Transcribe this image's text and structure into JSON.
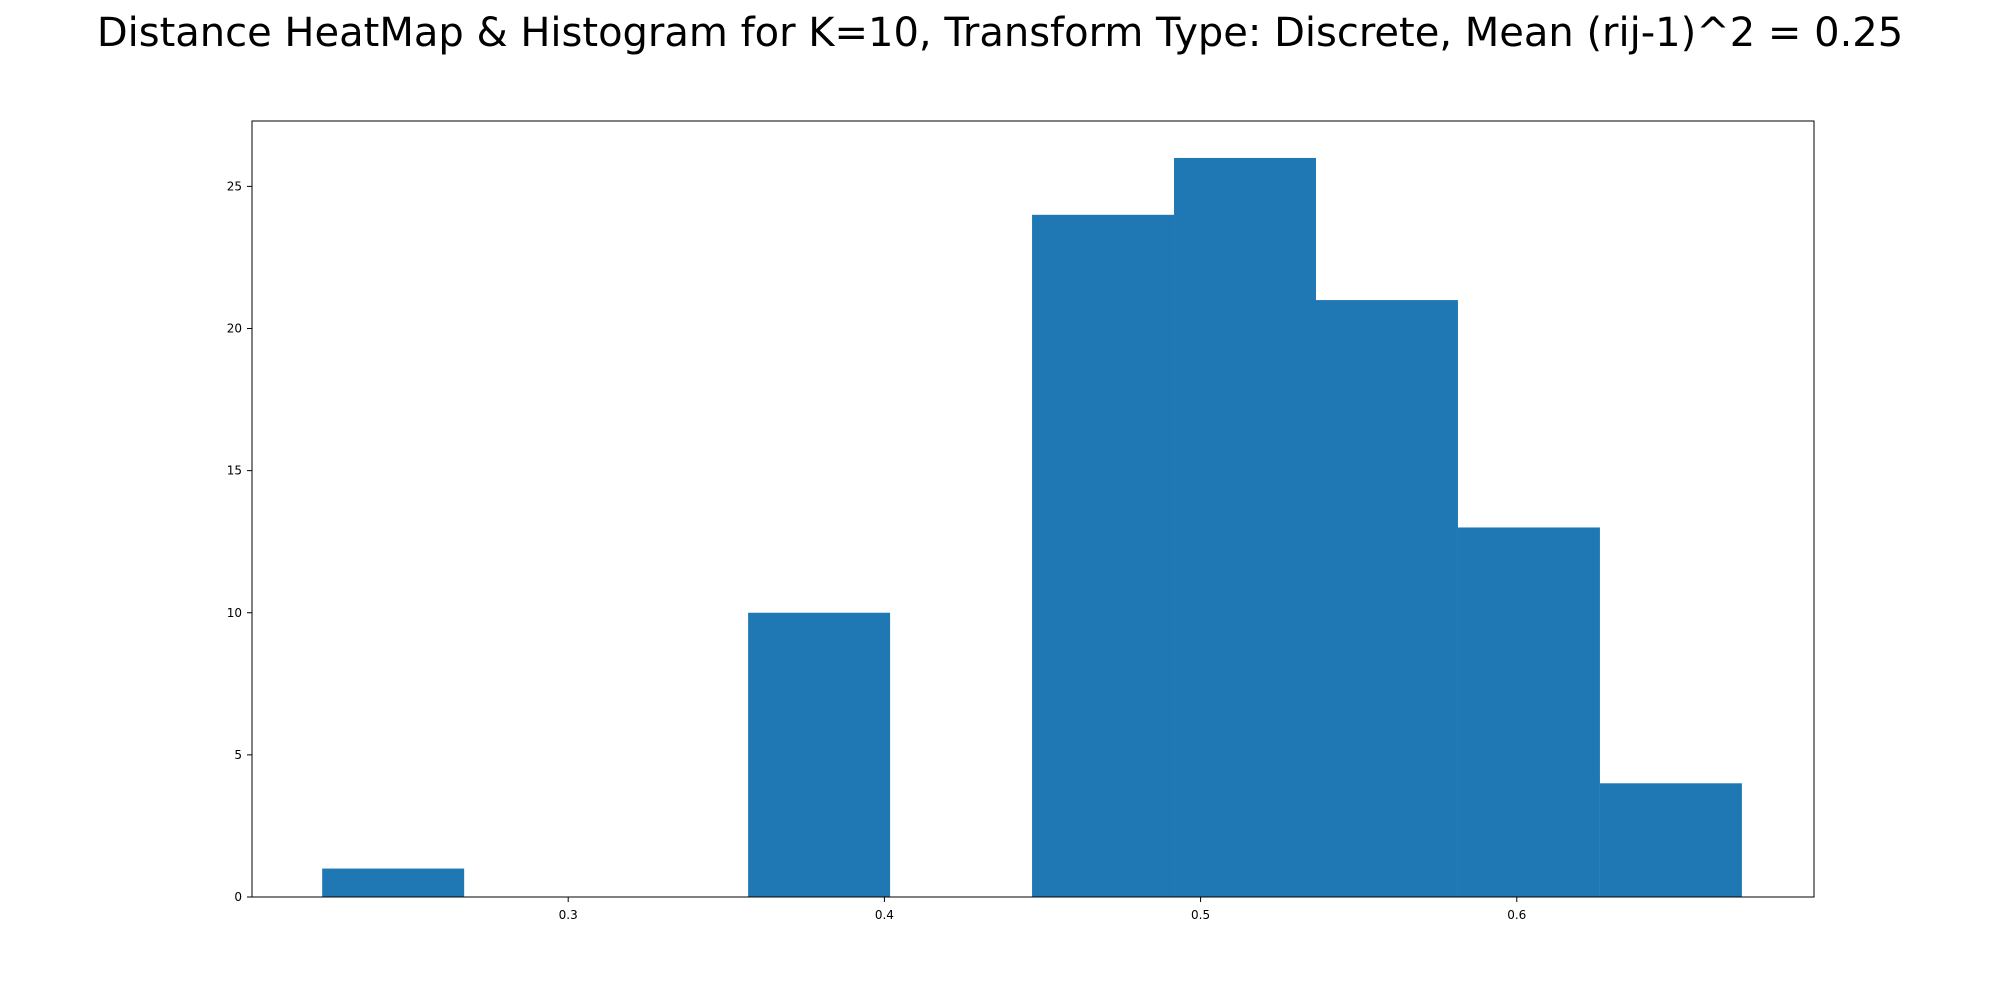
{
  "chart_data": {
    "type": "bar",
    "title": "Distance HeatMap & Histogram for K=10, Transform Type: Discrete, Mean (rij-1)^2 = 0.25",
    "xlabel": "",
    "ylabel": "",
    "xlim": [
      0.2,
      0.694
    ],
    "ylim": [
      0,
      27.3
    ],
    "x_ticks": [
      0.3,
      0.4,
      0.5,
      0.6
    ],
    "x_tick_labels": [
      "0.3",
      "0.4",
      "0.5",
      "0.6"
    ],
    "y_ticks": [
      0,
      5,
      10,
      15,
      20,
      25
    ],
    "y_tick_labels": [
      "0",
      "5",
      "10",
      "15",
      "20",
      "25"
    ],
    "bin_edges": [
      0.2222,
      0.2671,
      0.312,
      0.3569,
      0.4018,
      0.4467,
      0.4916,
      0.5365,
      0.5814,
      0.6263,
      0.6712
    ],
    "values": [
      1,
      0,
      0,
      10,
      0,
      24,
      26,
      21,
      13,
      4
    ],
    "bar_color": "#1f77b4",
    "grid": false
  }
}
